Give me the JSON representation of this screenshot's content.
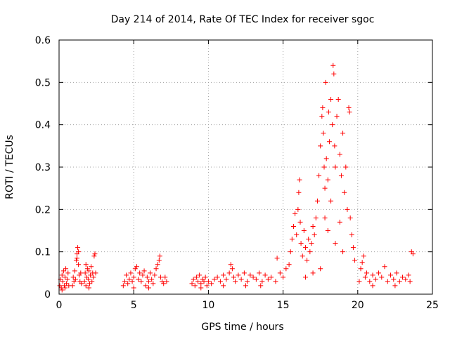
{
  "chart_data": {
    "type": "scatter",
    "title": "Day 214 of 2014, Rate Of TEC Index for receiver sgoc",
    "xlabel": "GPS time / hours",
    "ylabel": "ROTI / TECUs",
    "xlim": [
      0,
      25
    ],
    "ylim": [
      0,
      0.6
    ],
    "xticks": [
      0,
      5,
      10,
      15,
      20,
      25
    ],
    "yticks": [
      0,
      0.1,
      0.2,
      0.3,
      0.4,
      0.5,
      0.6
    ],
    "xtick_labels": [
      "0",
      "5",
      "10",
      "15",
      "20",
      "25"
    ],
    "ytick_labels": [
      "0",
      "0.1",
      "0.2",
      "0.3",
      "0.4",
      "0.5",
      "0.6"
    ],
    "grid": true,
    "marker": "plus",
    "color": "#ff0000",
    "series": [
      {
        "name": "ROTI",
        "points": [
          [
            0.05,
            0.02
          ],
          [
            0.1,
            0.035
          ],
          [
            0.15,
            0.015
          ],
          [
            0.2,
            0.045
          ],
          [
            0.25,
            0.03
          ],
          [
            0.3,
            0.055
          ],
          [
            0.35,
            0.02
          ],
          [
            0.4,
            0.04
          ],
          [
            0.45,
            0.06
          ],
          [
            0.5,
            0.025
          ],
          [
            0.55,
            0.035
          ],
          [
            0.6,
            0.05
          ],
          [
            0.65,
            0.02
          ],
          [
            0.2,
            0.01
          ],
          [
            0.4,
            0.015
          ],
          [
            0.9,
            0.02
          ],
          [
            0.95,
            0.04
          ],
          [
            1.0,
            0.03
          ],
          [
            1.05,
            0.055
          ],
          [
            1.1,
            0.035
          ],
          [
            1.15,
            0.08
          ],
          [
            1.2,
            0.095
          ],
          [
            1.25,
            0.11
          ],
          [
            1.3,
            0.07
          ],
          [
            1.35,
            0.045
          ],
          [
            1.4,
            0.03
          ],
          [
            1.45,
            0.05
          ],
          [
            1.5,
            0.025
          ],
          [
            1.2,
            0.085
          ],
          [
            1.3,
            0.1
          ],
          [
            1.7,
            0.03
          ],
          [
            1.75,
            0.05
          ],
          [
            1.8,
            0.07
          ],
          [
            1.85,
            0.04
          ],
          [
            1.9,
            0.06
          ],
          [
            1.95,
            0.035
          ],
          [
            2.0,
            0.055
          ],
          [
            2.05,
            0.025
          ],
          [
            2.1,
            0.045
          ],
          [
            2.15,
            0.065
          ],
          [
            2.2,
            0.03
          ],
          [
            2.25,
            0.05
          ],
          [
            2.3,
            0.04
          ],
          [
            2.35,
            0.09
          ],
          [
            2.4,
            0.095
          ],
          [
            2.45,
            0.05
          ],
          [
            2.0,
            0.015
          ],
          [
            1.8,
            0.02
          ],
          [
            4.3,
            0.02
          ],
          [
            4.4,
            0.03
          ],
          [
            4.5,
            0.045
          ],
          [
            4.6,
            0.025
          ],
          [
            4.7,
            0.035
          ],
          [
            4.8,
            0.05
          ],
          [
            4.9,
            0.03
          ],
          [
            5.0,
            0.04
          ],
          [
            5.1,
            0.06
          ],
          [
            5.2,
            0.065
          ],
          [
            5.3,
            0.035
          ],
          [
            5.4,
            0.05
          ],
          [
            5.5,
            0.03
          ],
          [
            5.6,
            0.045
          ],
          [
            5.7,
            0.055
          ],
          [
            5.8,
            0.02
          ],
          [
            5.9,
            0.04
          ],
          [
            6.0,
            0.03
          ],
          [
            6.1,
            0.05
          ],
          [
            6.2,
            0.035
          ],
          [
            6.3,
            0.025
          ],
          [
            6.4,
            0.045
          ],
          [
            6.5,
            0.06
          ],
          [
            6.6,
            0.07
          ],
          [
            6.7,
            0.08
          ],
          [
            6.75,
            0.09
          ],
          [
            6.8,
            0.04
          ],
          [
            6.9,
            0.03
          ],
          [
            7.0,
            0.025
          ],
          [
            7.1,
            0.04
          ],
          [
            7.2,
            0.03
          ],
          [
            5.0,
            0.015
          ],
          [
            6.0,
            0.015
          ],
          [
            8.9,
            0.025
          ],
          [
            9.0,
            0.035
          ],
          [
            9.1,
            0.02
          ],
          [
            9.2,
            0.04
          ],
          [
            9.3,
            0.03
          ],
          [
            9.4,
            0.045
          ],
          [
            9.5,
            0.025
          ],
          [
            9.6,
            0.035
          ],
          [
            9.7,
            0.03
          ],
          [
            9.8,
            0.04
          ],
          [
            9.9,
            0.02
          ],
          [
            10.0,
            0.03
          ],
          [
            9.5,
            0.015
          ],
          [
            10.2,
            0.025
          ],
          [
            10.4,
            0.035
          ],
          [
            10.6,
            0.04
          ],
          [
            10.8,
            0.03
          ],
          [
            11.0,
            0.045
          ],
          [
            11.2,
            0.035
          ],
          [
            11.4,
            0.05
          ],
          [
            11.5,
            0.07
          ],
          [
            11.6,
            0.06
          ],
          [
            11.7,
            0.04
          ],
          [
            11.8,
            0.03
          ],
          [
            12.0,
            0.045
          ],
          [
            12.2,
            0.035
          ],
          [
            12.4,
            0.05
          ],
          [
            12.6,
            0.03
          ],
          [
            12.8,
            0.045
          ],
          [
            13.0,
            0.04
          ],
          [
            13.2,
            0.035
          ],
          [
            13.4,
            0.05
          ],
          [
            13.6,
            0.03
          ],
          [
            13.8,
            0.045
          ],
          [
            14.0,
            0.035
          ],
          [
            14.2,
            0.04
          ],
          [
            11.0,
            0.02
          ],
          [
            12.5,
            0.02
          ],
          [
            13.5,
            0.02
          ],
          [
            14.5,
            0.03
          ],
          [
            14.6,
            0.085
          ],
          [
            14.8,
            0.05
          ],
          [
            15.0,
            0.04
          ],
          [
            15.2,
            0.06
          ],
          [
            15.4,
            0.07
          ],
          [
            15.5,
            0.1
          ],
          [
            15.6,
            0.13
          ],
          [
            15.7,
            0.16
          ],
          [
            15.8,
            0.19
          ],
          [
            15.9,
            0.14
          ],
          [
            16.0,
            0.2
          ],
          [
            16.05,
            0.24
          ],
          [
            16.1,
            0.27
          ],
          [
            16.15,
            0.17
          ],
          [
            16.2,
            0.12
          ],
          [
            16.3,
            0.09
          ],
          [
            16.4,
            0.15
          ],
          [
            16.5,
            0.11
          ],
          [
            16.6,
            0.08
          ],
          [
            16.7,
            0.13
          ],
          [
            16.8,
            0.1
          ],
          [
            16.9,
            0.12
          ],
          [
            17.0,
            0.16
          ],
          [
            17.1,
            0.14
          ],
          [
            17.2,
            0.18
          ],
          [
            17.3,
            0.22
          ],
          [
            17.4,
            0.28
          ],
          [
            17.5,
            0.35
          ],
          [
            17.6,
            0.42
          ],
          [
            17.65,
            0.44
          ],
          [
            17.7,
            0.38
          ],
          [
            17.75,
            0.3
          ],
          [
            17.8,
            0.25
          ],
          [
            17.85,
            0.5
          ],
          [
            17.9,
            0.32
          ],
          [
            18.0,
            0.27
          ],
          [
            18.05,
            0.43
          ],
          [
            18.1,
            0.36
          ],
          [
            18.2,
            0.46
          ],
          [
            18.3,
            0.4
          ],
          [
            18.35,
            0.54
          ],
          [
            18.4,
            0.52
          ],
          [
            18.45,
            0.35
          ],
          [
            18.5,
            0.3
          ],
          [
            18.6,
            0.42
          ],
          [
            18.7,
            0.46
          ],
          [
            18.8,
            0.33
          ],
          [
            18.9,
            0.28
          ],
          [
            19.0,
            0.38
          ],
          [
            19.1,
            0.24
          ],
          [
            19.2,
            0.3
          ],
          [
            19.3,
            0.2
          ],
          [
            19.4,
            0.44
          ],
          [
            19.45,
            0.43
          ],
          [
            19.5,
            0.18
          ],
          [
            19.6,
            0.14
          ],
          [
            19.7,
            0.11
          ],
          [
            19.8,
            0.08
          ],
          [
            17.0,
            0.05
          ],
          [
            17.5,
            0.06
          ],
          [
            18.0,
            0.15
          ],
          [
            18.5,
            0.12
          ],
          [
            19.0,
            0.1
          ],
          [
            16.5,
            0.04
          ],
          [
            17.8,
            0.18
          ],
          [
            18.2,
            0.22
          ],
          [
            18.8,
            0.17
          ],
          [
            20.1,
            0.03
          ],
          [
            20.2,
            0.06
          ],
          [
            20.3,
            0.075
          ],
          [
            20.4,
            0.09
          ],
          [
            20.5,
            0.04
          ],
          [
            20.6,
            0.05
          ],
          [
            20.8,
            0.03
          ],
          [
            21.0,
            0.045
          ],
          [
            21.2,
            0.035
          ],
          [
            21.4,
            0.05
          ],
          [
            21.6,
            0.04
          ],
          [
            21.8,
            0.065
          ],
          [
            22.0,
            0.03
          ],
          [
            22.2,
            0.045
          ],
          [
            22.4,
            0.035
          ],
          [
            22.6,
            0.05
          ],
          [
            22.8,
            0.03
          ],
          [
            23.0,
            0.04
          ],
          [
            23.2,
            0.035
          ],
          [
            23.4,
            0.045
          ],
          [
            23.6,
            0.1
          ],
          [
            23.7,
            0.095
          ],
          [
            23.5,
            0.03
          ],
          [
            21.0,
            0.02
          ],
          [
            22.5,
            0.02
          ]
        ]
      }
    ]
  }
}
